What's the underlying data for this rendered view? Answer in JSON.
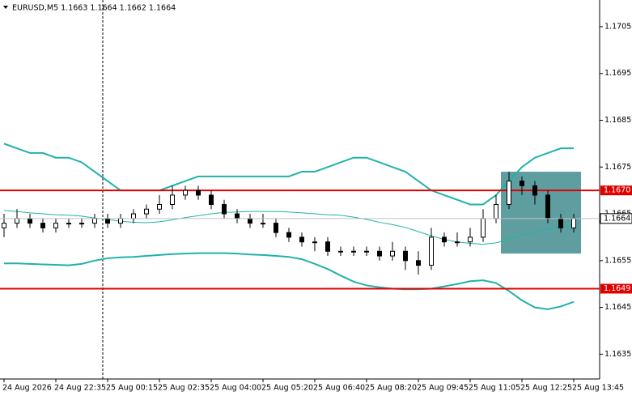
{
  "chart_data": {
    "type": "candlestick",
    "title": "EURUSD,M5  1.1663 1.1664 1.1662 1.1664",
    "categories": [
      "24 Aug 2026",
      null,
      null,
      null,
      "24 Aug 22:35",
      null,
      null,
      null,
      "25 Aug 00:15",
      null,
      null,
      null,
      "25 Aug 02:35",
      null,
      null,
      null,
      "25 Aug 04:00",
      null,
      null,
      null,
      "25 Aug 05:20",
      null,
      null,
      null,
      "25 Aug 06:40",
      null,
      null,
      null,
      "25 Aug 08:20",
      null,
      null,
      null,
      "25 Aug 09:45",
      null,
      null,
      null,
      "25 Aug 11:05",
      null,
      null,
      null,
      "25 Aug 12:25",
      null,
      null,
      null,
      "25 Aug 13:45"
    ],
    "open": [
      1.1662,
      1.1663,
      1.1664,
      1.1663,
      1.1662,
      1.1663,
      1.1663,
      1.1663,
      1.1664,
      1.1663,
      1.1664,
      1.1665,
      1.1666,
      1.1667,
      1.1669,
      1.167,
      1.1669,
      1.1667,
      1.1665,
      1.1664,
      1.1663,
      1.1663,
      1.1661,
      1.166,
      1.1659,
      1.1659,
      1.1657,
      1.1657,
      1.1657,
      1.1657,
      1.1656,
      1.1657,
      1.1655,
      1.1654,
      1.166,
      1.1659,
      1.1659,
      1.166,
      1.1664,
      1.1667,
      1.1672,
      1.1671,
      1.1669,
      1.1664,
      1.1662
    ],
    "high": [
      1.1665,
      1.1666,
      1.1665,
      1.1664,
      1.1664,
      1.1664,
      1.1664,
      1.1665,
      1.1665,
      1.1665,
      1.1666,
      1.1667,
      1.1669,
      1.1671,
      1.1671,
      1.1671,
      1.167,
      1.1668,
      1.1666,
      1.1665,
      1.1665,
      1.1664,
      1.1662,
      1.1661,
      1.166,
      1.166,
      1.1658,
      1.1658,
      1.1658,
      1.1658,
      1.1659,
      1.1658,
      1.1657,
      1.1662,
      1.1661,
      1.1661,
      1.1662,
      1.1666,
      1.1669,
      1.1674,
      1.1673,
      1.1672,
      1.167,
      1.1665,
      1.1665
    ],
    "low": [
      1.166,
      1.1662,
      1.1662,
      1.1661,
      1.1661,
      1.1662,
      1.1662,
      1.1662,
      1.1662,
      1.1662,
      1.1663,
      1.1664,
      1.1665,
      1.1666,
      1.1668,
      1.1668,
      1.1666,
      1.1664,
      1.1663,
      1.1662,
      1.1662,
      1.166,
      1.1659,
      1.1658,
      1.1657,
      1.1656,
      1.1656,
      1.1656,
      1.1656,
      1.1655,
      1.1655,
      1.1653,
      1.1652,
      1.1653,
      1.1658,
      1.1658,
      1.1658,
      1.1659,
      1.1663,
      1.1666,
      1.1669,
      1.1667,
      1.1663,
      1.1661,
      1.1661
    ],
    "close": [
      1.1663,
      1.1664,
      1.1663,
      1.1662,
      1.1663,
      1.1663,
      1.1663,
      1.1664,
      1.1663,
      1.1664,
      1.1665,
      1.1666,
      1.1667,
      1.1669,
      1.167,
      1.1669,
      1.1667,
      1.1665,
      1.1664,
      1.1663,
      1.1663,
      1.1661,
      1.166,
      1.1659,
      1.1659,
      1.1657,
      1.1657,
      1.1657,
      1.1657,
      1.1656,
      1.1657,
      1.1655,
      1.1654,
      1.166,
      1.1659,
      1.1659,
      1.166,
      1.1664,
      1.1667,
      1.1672,
      1.1671,
      1.1669,
      1.1664,
      1.1662,
      1.1664
    ],
    "bands": {
      "color": "#20b2aa",
      "upper": [
        1.168,
        1.1679,
        1.1678,
        1.1678,
        1.1677,
        1.1677,
        1.1676,
        1.1674,
        1.1672,
        1.167,
        1.167,
        1.167,
        1.167,
        1.1671,
        1.1672,
        1.1673,
        1.1673,
        1.1673,
        1.1673,
        1.1673,
        1.1673,
        1.1673,
        1.1673,
        1.1674,
        1.1674,
        1.1675,
        1.1676,
        1.1677,
        1.1677,
        1.1676,
        1.1675,
        1.1674,
        1.1672,
        1.167,
        1.1669,
        1.1668,
        1.1667,
        1.1667,
        1.1669,
        1.1672,
        1.1675,
        1.1677,
        1.1678,
        1.1679,
        1.1679
      ],
      "middle": [
        1.16657,
        1.16655,
        1.16652,
        1.1665,
        1.16648,
        1.16647,
        1.16645,
        1.16641,
        1.16638,
        1.16634,
        1.16632,
        1.16631,
        1.16633,
        1.16637,
        1.16642,
        1.16646,
        1.1665,
        1.16653,
        1.16654,
        1.16655,
        1.16655,
        1.16655,
        1.16654,
        1.16652,
        1.1665,
        1.16648,
        1.16647,
        1.16643,
        1.16638,
        1.16632,
        1.16627,
        1.16621,
        1.16612,
        1.16603,
        1.16595,
        1.1659,
        1.16587,
        1.16585,
        1.16588,
        1.16595,
        1.16605,
        1.16612,
        1.16618,
        1.16624,
        1.1663
      ],
      "lower": [
        1.16544,
        1.16544,
        1.16543,
        1.16542,
        1.16541,
        1.1654,
        1.16543,
        1.1655,
        1.16555,
        1.16557,
        1.16558,
        1.1656,
        1.16562,
        1.16564,
        1.16565,
        1.16566,
        1.16566,
        1.16566,
        1.16565,
        1.16563,
        1.16562,
        1.1656,
        1.16558,
        1.16553,
        1.16543,
        1.16532,
        1.16518,
        1.16505,
        1.16497,
        1.16493,
        1.1649,
        1.16489,
        1.16489,
        1.1649,
        1.16495,
        1.165,
        1.16506,
        1.16508,
        1.16502,
        1.16485,
        1.16465,
        1.1645,
        1.16446,
        1.16452,
        1.16462
      ]
    },
    "hlines": [
      {
        "value": 1.167,
        "label": "1.1670",
        "color": "#e00000"
      },
      {
        "value": 1.1649,
        "label": "1.1649",
        "color": "#e00000"
      }
    ],
    "current_price": 1.1664,
    "rectangle": {
      "top": 1.1674,
      "bottom": 1.16565,
      "color": "#5f9ea0"
    },
    "ylim": [
      1.16297,
      1.17107
    ],
    "yticks": [
      1.1635,
      1.1645,
      1.1655,
      1.1665,
      1.1675,
      1.1685,
      1.1695,
      1.1705
    ]
  }
}
